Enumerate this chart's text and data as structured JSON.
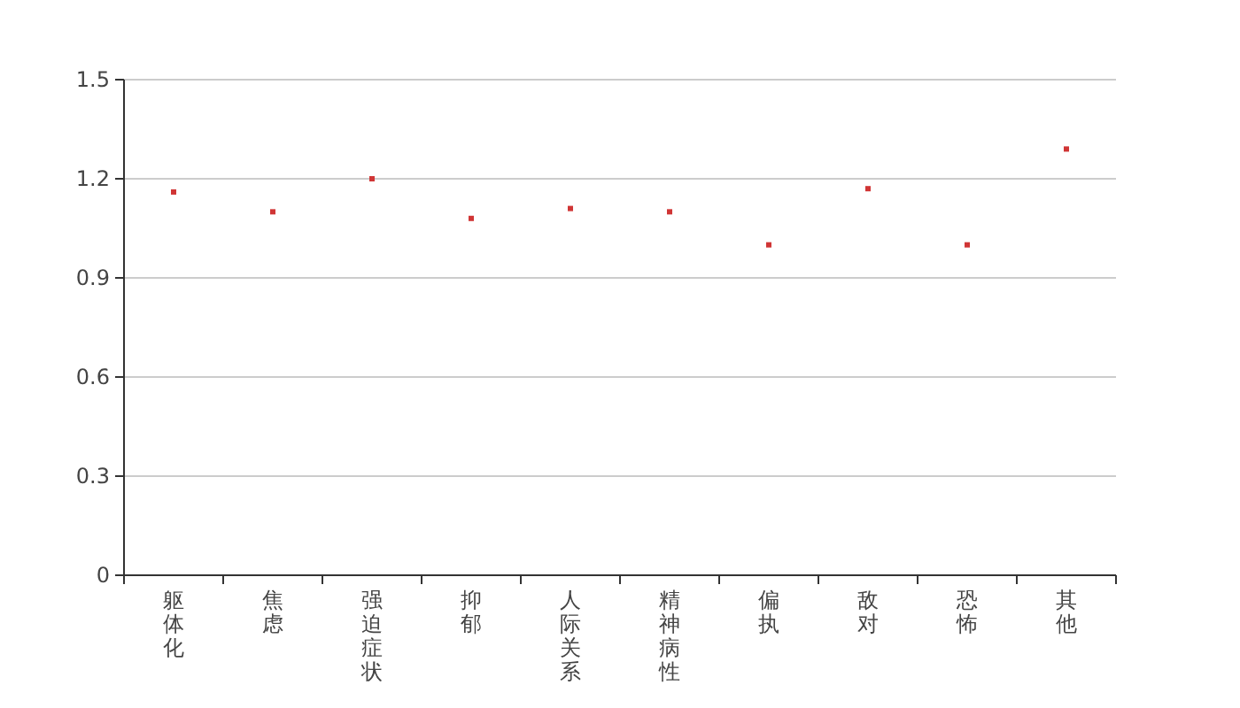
{
  "chart_data": {
    "type": "scatter",
    "categories": [
      "躯体化",
      "焦虑",
      "强迫症状",
      "抑郁",
      "人际关系",
      "精神病性",
      "偏执",
      "敌对",
      "恐怖",
      "其他"
    ],
    "series": [
      {
        "color": "#d03535",
        "values": [
          1.16,
          1.1,
          1.2,
          1.08,
          1.11,
          1.1,
          1.0,
          1.17,
          1.0,
          1.29
        ]
      }
    ],
    "ylim": [
      0,
      1.5
    ],
    "yticks": [
      0,
      0.3,
      0.6,
      0.9,
      1.2,
      1.5
    ],
    "grid": "y",
    "marker": "square"
  }
}
